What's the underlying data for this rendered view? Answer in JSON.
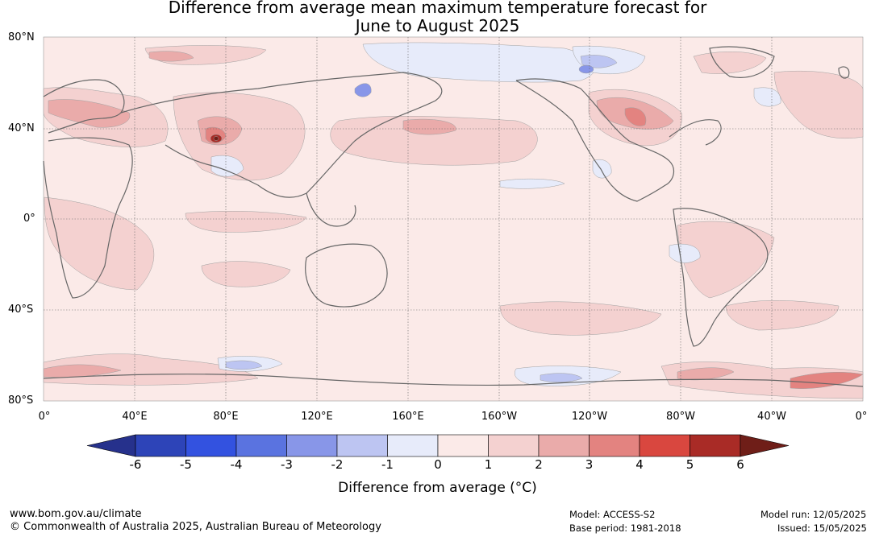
{
  "title_line1": "Difference from average mean maximum temperature forecast for",
  "title_line2": "June to August 2025",
  "map": {
    "lat_labels": [
      "80°N",
      "40°N",
      "0°",
      "40°S",
      "80°S"
    ],
    "lon_labels": [
      "0°",
      "40°E",
      "80°E",
      "120°E",
      "160°E",
      "160°W",
      "120°W",
      "80°W",
      "40°W",
      "0°"
    ]
  },
  "colorbar": {
    "title": "Difference from average (°C)",
    "tick_labels": [
      "-6",
      "-5",
      "-4",
      "-3",
      "-2",
      "-1",
      "0",
      "1",
      "2",
      "3",
      "4",
      "5",
      "6"
    ],
    "colors": [
      "#26318c",
      "#2d44b8",
      "#3352e0",
      "#5a73e0",
      "#8896e8",
      "#bdc5f2",
      "#e7ebfa",
      "#fbeae8",
      "#f4d1d0",
      "#eaabaa",
      "#e38380",
      "#d9473f",
      "#a92b26",
      "#6f1e18"
    ]
  },
  "footer": {
    "website": "www.bom.gov.au/climate",
    "copyright": "© Commonwealth of Australia 2025, Australian Bureau of Meteorology",
    "model": "Model: ACCESS-S2",
    "base_period": "Base period: 1981-2018",
    "model_run": "Model run: 12/05/2025",
    "issued": "Issued: 15/05/2025"
  }
}
